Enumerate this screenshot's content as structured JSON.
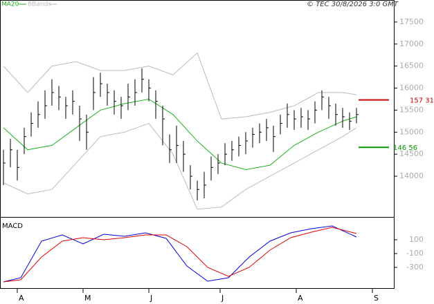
{
  "chart_data": [
    {
      "type": "hlc",
      "note": "© TEC 30/8/2026 3:0 GMT",
      "xlim": [
        0,
        114
      ],
      "xticks": [
        {
          "value": 5,
          "label": "A"
        },
        {
          "value": 24,
          "label": "M"
        },
        {
          "value": 43,
          "label": "J"
        },
        {
          "value": 63.6,
          "label": "J"
        },
        {
          "value": 85.6,
          "label": "A"
        },
        {
          "value": 107.6,
          "label": "S"
        }
      ],
      "ylim": [
        13060,
        18000
      ],
      "yticks": [
        14000,
        14500,
        15000,
        15500,
        16000,
        16500,
        17000,
        17500
      ],
      "color": "#000000",
      "x": [
        1,
        3,
        5,
        7,
        9,
        11,
        13,
        15,
        17,
        19,
        21,
        23,
        25,
        27,
        29,
        31,
        33,
        35,
        37,
        39,
        41,
        43,
        45,
        47,
        49,
        51,
        53,
        55,
        57,
        59,
        61,
        63,
        65,
        67,
        69,
        71,
        73,
        75,
        77,
        79,
        81,
        83,
        85,
        87,
        89,
        91,
        93,
        95,
        97,
        99,
        101,
        103
      ],
      "high": [
        14600,
        14850,
        14600,
        15100,
        15450,
        15700,
        15950,
        16200,
        16050,
        15800,
        15950,
        15600,
        15400,
        16250,
        16350,
        16100,
        15950,
        15800,
        16100,
        16200,
        16450,
        16200,
        15950,
        15600,
        14950,
        15150,
        14800,
        14250,
        13900,
        14100,
        14450,
        14500,
        14750,
        14800,
        14900,
        15000,
        15100,
        15200,
        15300,
        15150,
        15400,
        15650,
        15500,
        15550,
        15500,
        15700,
        15950,
        15800,
        15650,
        15550,
        15450,
        15550
      ],
      "low": [
        13800,
        14200,
        13900,
        14500,
        14900,
        15100,
        15300,
        15600,
        15500,
        15300,
        15400,
        14800,
        14600,
        15500,
        15800,
        15600,
        15400,
        15300,
        15500,
        15600,
        15900,
        15700,
        15300,
        14700,
        14300,
        14300,
        14100,
        13700,
        13450,
        13500,
        13900,
        14050,
        14250,
        14350,
        14450,
        14500,
        14650,
        14750,
        14800,
        14550,
        14950,
        15100,
        15050,
        15100,
        15050,
        15200,
        15500,
        15300,
        15150,
        15100,
        15050,
        15200
      ],
      "close": [
        14300,
        14600,
        14200,
        14900,
        15200,
        15400,
        15600,
        15900,
        15800,
        15600,
        15700,
        15300,
        15000,
        15900,
        16100,
        15900,
        15700,
        15600,
        15800,
        15900,
        16200,
        16000,
        15700,
        15300,
        14600,
        14700,
        14500,
        14000,
        13700,
        13800,
        14200,
        14300,
        14500,
        14600,
        14700,
        14800,
        14950,
        15000,
        15100,
        14900,
        15200,
        15400,
        15300,
        15350,
        15300,
        15500,
        15800,
        15600,
        15400,
        15350,
        15250,
        15400
      ],
      "series": [
        {
          "name": "MA20",
          "color": "#1bb31b",
          "x": [
            1,
            8,
            15,
            22,
            29,
            36,
            43,
            50,
            57,
            64,
            71,
            78,
            85,
            92,
            99,
            103
          ],
          "values": [
            15100,
            14600,
            14700,
            15100,
            15500,
            15650,
            15750,
            15400,
            14800,
            14300,
            14150,
            14250,
            14700,
            15000,
            15250,
            15350
          ]
        },
        {
          "name": "BBands",
          "color": "#bbbbbb",
          "x": [
            1,
            8,
            15,
            22,
            29,
            36,
            43,
            50,
            57,
            64,
            71,
            78,
            85,
            92,
            99,
            103
          ],
          "upper": [
            16500,
            15900,
            16500,
            16600,
            16400,
            16400,
            16500,
            16300,
            16800,
            15300,
            15350,
            15450,
            15600,
            15900,
            15900,
            15850
          ],
          "lower": [
            13850,
            13600,
            13700,
            14300,
            14900,
            15000,
            15200,
            14500,
            13250,
            13300,
            13700,
            14000,
            14300,
            14600,
            14900,
            15100
          ]
        }
      ],
      "markers": [
        {
          "value": 15731,
          "label": "157 31",
          "color": "#cc0000"
        },
        {
          "value": 14656,
          "label": "146 56",
          "color": "#009900"
        }
      ]
    },
    {
      "type": "line",
      "title": "MACD",
      "xlim": [
        0,
        114
      ],
      "ylim": [
        -610,
        420
      ],
      "yticks": [
        100,
        -100,
        -300
      ],
      "series": [
        {
          "color": "#0000dd",
          "x": [
            1,
            6,
            12,
            18,
            24,
            30,
            36,
            42,
            48,
            54,
            60,
            66,
            72,
            78,
            84,
            90,
            96,
            103
          ],
          "values": [
            -510,
            -450,
            80,
            170,
            40,
            180,
            150,
            200,
            120,
            -280,
            -500,
            -450,
            -150,
            80,
            200,
            260,
            300,
            140
          ]
        },
        {
          "color": "#dd0000",
          "x": [
            1,
            6,
            12,
            18,
            24,
            30,
            36,
            42,
            48,
            54,
            60,
            66,
            72,
            78,
            84,
            90,
            96,
            103
          ],
          "values": [
            -510,
            -480,
            -150,
            80,
            130,
            100,
            130,
            170,
            170,
            0,
            -300,
            -430,
            -300,
            -50,
            130,
            210,
            280,
            190
          ]
        }
      ]
    }
  ]
}
